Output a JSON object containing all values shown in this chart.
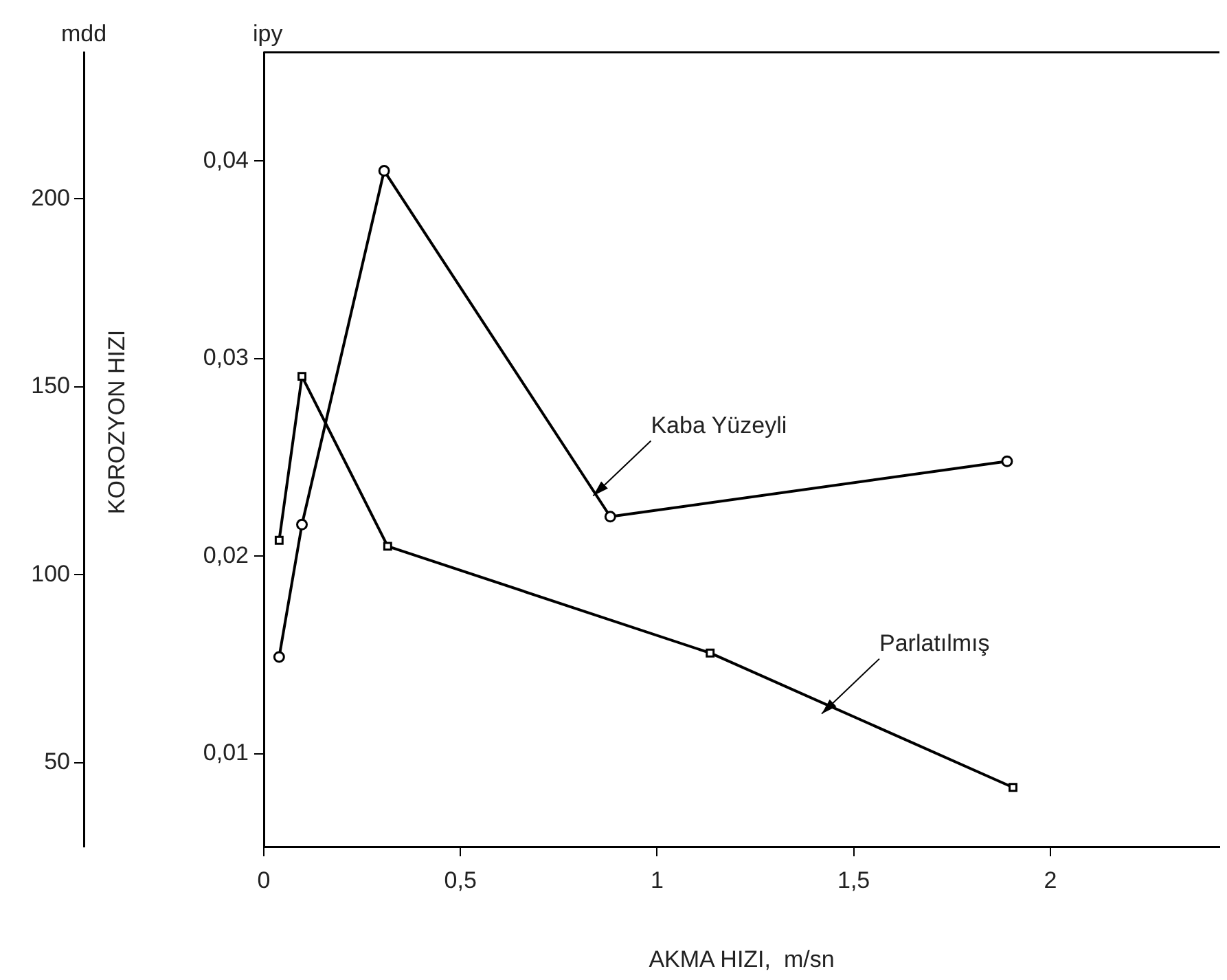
{
  "chart_data": {
    "type": "line",
    "xlabel": "AKMA HIZI,  m/sn",
    "y2label": "KOROZYON HIZI",
    "xlim": [
      0,
      2.43
    ],
    "xticks": [
      {
        "value": 0,
        "label": "0"
      },
      {
        "value": 0.5,
        "label": "0,5"
      },
      {
        "value": 1,
        "label": "1"
      },
      {
        "value": 1.5,
        "label": "1,5"
      },
      {
        "value": 2,
        "label": "2"
      }
    ],
    "ylim": [
      0.0053,
      0.0455
    ],
    "yticks": [
      {
        "value": 0.01,
        "label": "0,01"
      },
      {
        "value": 0.02,
        "label": "0,02"
      },
      {
        "value": 0.03,
        "label": "0,03"
      },
      {
        "value": 0.04,
        "label": "0,04"
      }
    ],
    "y2lim": [
      27.7,
      239
    ],
    "y2ticks": [
      50,
      100,
      150,
      200
    ],
    "series": [
      {
        "name": "Kaba Yüzeyli",
        "color": "#000000",
        "marker": "circle",
        "x": [
          0.039,
          0.097,
          0.306,
          0.881,
          1.89
        ],
        "values": [
          0.0149,
          0.0216,
          0.0395,
          0.022,
          0.0248
        ]
      },
      {
        "name": "Parlatılmış",
        "color": "#000000",
        "marker": "square",
        "x": [
          0.039,
          0.097,
          0.315,
          1.135,
          1.905
        ],
        "values": [
          0.0208,
          0.0291,
          0.0205,
          0.0151,
          0.0083
        ]
      }
    ],
    "annotations": [
      "ipy",
      "mdd"
    ],
    "grid": false,
    "legend": false,
    "line_style": "solid"
  }
}
